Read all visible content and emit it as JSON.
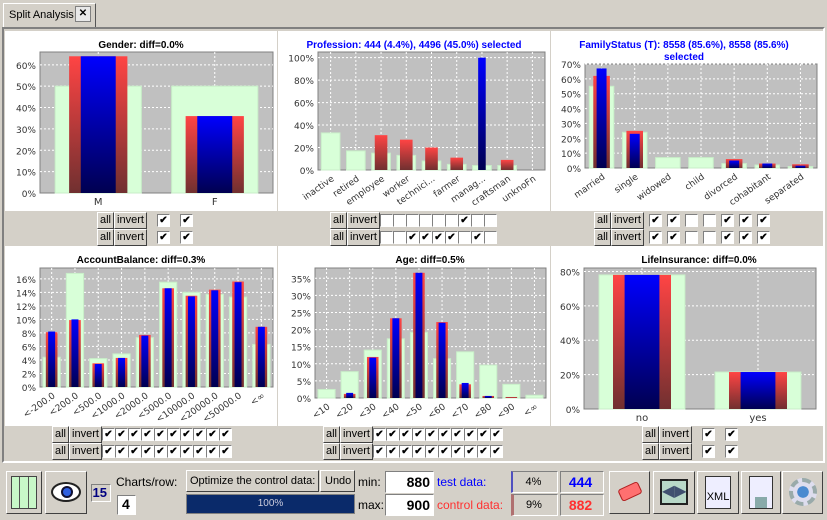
{
  "tab": {
    "title": "Split Analysis",
    "close_icon": "close-icon"
  },
  "colors": {
    "background_bar": "#d8ffd8",
    "control": "#ff4040",
    "test": "#0000ff",
    "selected_title": "#0000ff"
  },
  "chart_data": [
    {
      "type": "bar",
      "title": "Gender: diff=0.0%",
      "title_color": "#000000",
      "categories": [
        "M",
        "F"
      ],
      "ylim": [
        0,
        66
      ],
      "yticks": [
        0,
        10,
        20,
        30,
        40,
        50,
        60
      ],
      "rotate_labels": false,
      "series": [
        {
          "values": [
            50,
            50
          ]
        },
        {
          "values": [
            64,
            36
          ]
        },
        {
          "values": [
            64,
            36
          ]
        }
      ],
      "checks": [
        [
          true,
          true
        ],
        [
          true,
          true
        ]
      ]
    },
    {
      "type": "bar",
      "title": "Profession: 444 (4.4%), 4496 (45.0%)  selected",
      "title_color": "#0000ff",
      "categories": [
        "inactive",
        "retired",
        "employee",
        "worker",
        "technici...",
        "farmer",
        "manag...",
        "craftsman",
        "unknoFn"
      ],
      "ylim": [
        0,
        105
      ],
      "yticks": [
        0,
        20,
        40,
        60,
        80,
        100
      ],
      "rotate_labels": true,
      "series": [
        {
          "values": [
            33,
            17,
            15,
            13,
            8,
            5,
            4,
            4,
            0
          ]
        },
        {
          "values": [
            0,
            0,
            31,
            27,
            20,
            11,
            0,
            9,
            0
          ]
        },
        {
          "values": [
            0,
            0,
            0,
            0,
            0,
            0,
            100,
            0,
            0
          ]
        }
      ],
      "checks": [
        [
          false,
          false,
          false,
          false,
          false,
          false,
          true,
          false,
          false
        ],
        [
          false,
          false,
          true,
          true,
          true,
          true,
          false,
          true,
          false
        ]
      ]
    },
    {
      "type": "bar",
      "title": "FamilyStatus  (T): 8558 (85.6%), 8558 (85.6%)",
      "title2": "selected",
      "title_color": "#0000ff",
      "categories": [
        "married",
        "single",
        "widowed",
        "child",
        "divorced",
        "cohabitant",
        "separated"
      ],
      "ylim": [
        0,
        70
      ],
      "yticks": [
        0,
        10,
        20,
        30,
        40,
        50,
        60,
        70
      ],
      "rotate_labels": true,
      "series": [
        {
          "values": [
            55,
            24,
            7,
            7,
            3,
            2,
            1
          ]
        },
        {
          "values": [
            62,
            25,
            0,
            0,
            6,
            3,
            2.5
          ]
        },
        {
          "values": [
            67,
            23,
            0,
            0,
            5,
            3,
            1.5
          ]
        }
      ],
      "checks": [
        [
          true,
          true,
          false,
          false,
          true,
          true,
          true
        ],
        [
          true,
          true,
          false,
          false,
          true,
          true,
          true
        ]
      ]
    },
    {
      "type": "bar",
      "title": "AccountBalance: diff=0.3%",
      "title_color": "#000000",
      "categories": [
        "<-200.0",
        "<200.0",
        "<500.0",
        "<1000.0",
        "<2000.0",
        "<5000.0",
        "<10000.0",
        "<20000.0",
        "<50000.0",
        "<∞"
      ],
      "ylim": [
        0,
        17.6
      ],
      "yticks": [
        0,
        2,
        4,
        6,
        8,
        10,
        12,
        14,
        16
      ],
      "rotate_labels": true,
      "series": [
        {
          "values": [
            4.4,
            16.8,
            4.2,
            4.9,
            7.3,
            15.5,
            14,
            13.7,
            13.3,
            6.3
          ]
        },
        {
          "values": [
            8.1,
            9.9,
            3.5,
            4.3,
            7.7,
            14.6,
            13.5,
            14.4,
            15.6,
            8.9
          ]
        },
        {
          "values": [
            8.2,
            10,
            3.4,
            4.3,
            7.6,
            14.6,
            13.4,
            14.3,
            15.5,
            8.9
          ]
        }
      ],
      "checks": [
        [
          true,
          true,
          true,
          true,
          true,
          true,
          true,
          true,
          true,
          true
        ],
        [
          true,
          true,
          true,
          true,
          true,
          true,
          true,
          true,
          true,
          true
        ]
      ]
    },
    {
      "type": "bar",
      "title": "Age: diff=0.5%",
      "title_color": "#000000",
      "categories": [
        "<10",
        "<20",
        "<30",
        "<40",
        "<50",
        "<60",
        "<70",
        "<80",
        "<90",
        "<∞"
      ],
      "ylim": [
        0,
        38
      ],
      "yticks": [
        0,
        5,
        10,
        15,
        20,
        25,
        30,
        35
      ],
      "rotate_labels": true,
      "series": [
        {
          "values": [
            2.5,
            7.7,
            14,
            17.3,
            19.2,
            11.5,
            13.5,
            9.6,
            4,
            0.8
          ]
        },
        {
          "values": [
            0,
            1.2,
            12,
            23.3,
            36.6,
            22.2,
            4,
            0.6,
            0.3,
            0
          ]
        },
        {
          "values": [
            0,
            1.5,
            11.8,
            23.3,
            36.6,
            22,
            4.4,
            0.6,
            0,
            0
          ]
        }
      ],
      "checks": [
        [
          true,
          true,
          true,
          true,
          true,
          true,
          true,
          true,
          true,
          true
        ],
        [
          true,
          true,
          true,
          true,
          true,
          true,
          true,
          true,
          true,
          true
        ]
      ]
    },
    {
      "type": "bar",
      "title": "LifeInsurance: diff=0.0%",
      "title_color": "#000000",
      "categories": [
        "no",
        "yes"
      ],
      "ylim": [
        0,
        82
      ],
      "yticks": [
        0,
        20,
        40,
        60,
        80
      ],
      "rotate_labels": false,
      "series": [
        {
          "values": [
            78,
            21.5
          ]
        },
        {
          "values": [
            78,
            21.5
          ]
        },
        {
          "values": [
            78,
            21.5
          ]
        }
      ],
      "checks": [
        [
          true,
          true
        ],
        [
          true,
          true
        ]
      ]
    }
  ],
  "controls": {
    "all_label": "all",
    "invert_label": "invert"
  },
  "toolbar": {
    "columns_icon": "columns-icon",
    "eye_icon": "eye-icon",
    "count": "15",
    "charts_per_row_label": "Charts/row:",
    "charts_per_row": "4",
    "optimize_label": "Optimize the control data:",
    "undo_label": "Undo",
    "progress": "100%",
    "progress_value": 100,
    "min_label": "min:",
    "min_value": "880",
    "max_label": "max:",
    "max_value": "900",
    "test_label": "test data:",
    "test_pct": "4%",
    "test_pct_value": 4,
    "test_count": "444",
    "control_label": "control data:",
    "control_pct": "9%",
    "control_pct_value": 9,
    "control_count": "882",
    "icons": [
      "eraser-icon",
      "split-arrows-icon",
      "xml-export-icon",
      "save-icon",
      "settings-run-icon"
    ]
  }
}
